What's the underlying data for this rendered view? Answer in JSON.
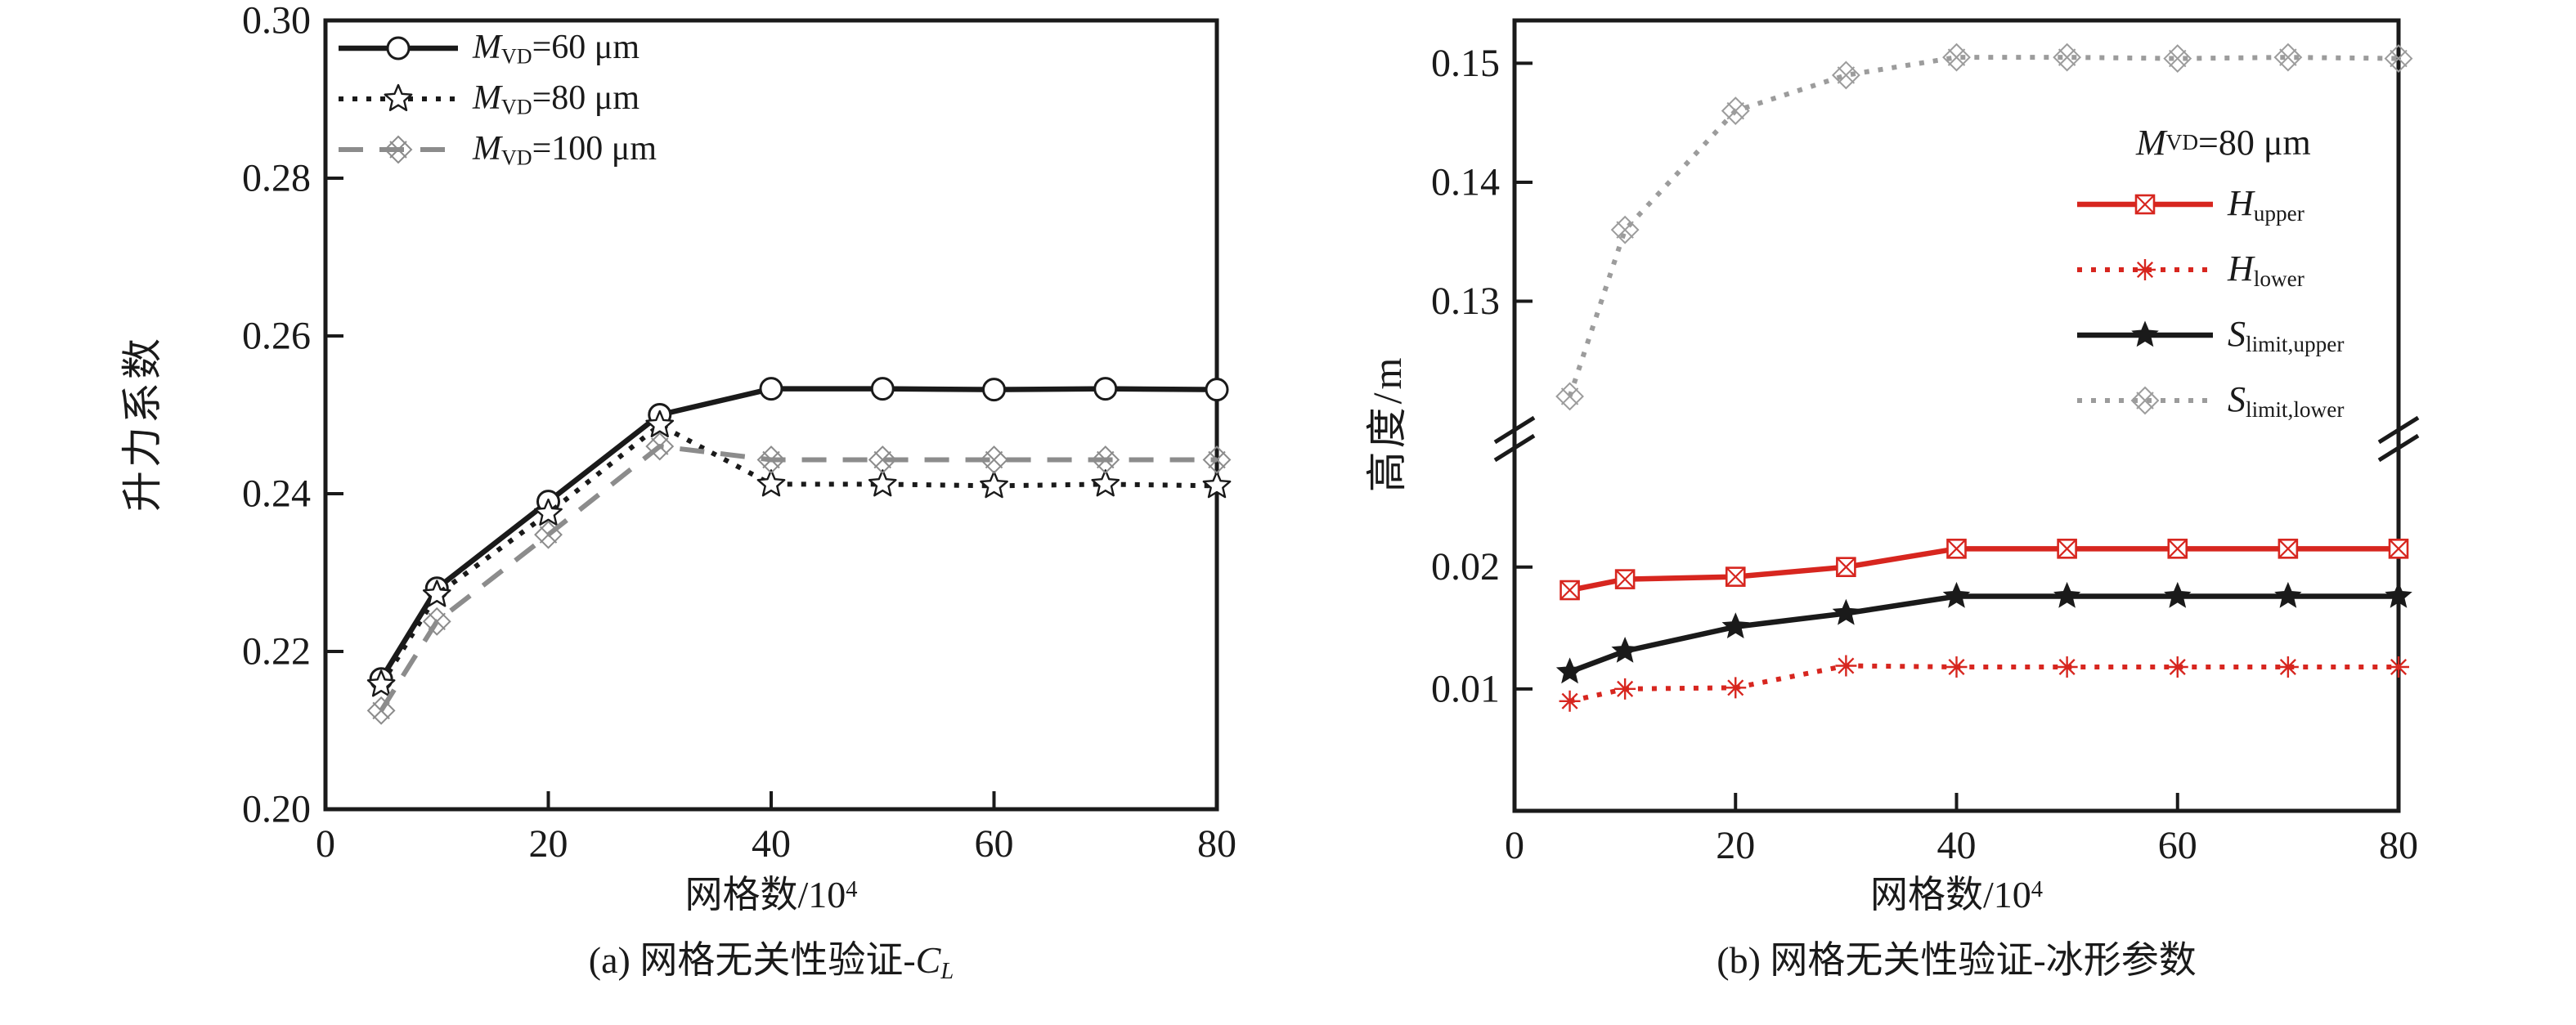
{
  "page": {
    "background": "#ffffff",
    "text_color": "#1a1a1a"
  },
  "chart_data": [
    {
      "id": "a",
      "type": "line",
      "caption": "(a) 网格无关性验证-CL",
      "caption_segments": [
        {
          "t": "(a) 网格无关性验证-"
        },
        {
          "t": "C",
          "i": 1
        },
        {
          "t": "L",
          "i": 1,
          "sub": 1
        }
      ],
      "xlabel": "网格数/10^4",
      "xlabel_segments": [
        {
          "t": "网格数/10"
        },
        {
          "t": "4",
          "sup": 1
        }
      ],
      "ylabel": "升力系数",
      "xlim": [
        0,
        80
      ],
      "xticks": [
        0,
        20,
        40,
        60,
        80
      ],
      "ylim": [
        0.2,
        0.3
      ],
      "yticks": [
        0.2,
        0.22,
        0.24,
        0.26,
        0.28,
        0.3
      ],
      "grid": false,
      "legend_position": "top-left",
      "x": [
        5,
        10,
        20,
        30,
        40,
        50,
        60,
        70,
        80
      ],
      "series": [
        {
          "name": "M_VD=60 μm",
          "name_segments": [
            {
              "t": "M",
              "i": 1
            },
            {
              "t": "VD",
              "sub": 1
            },
            {
              "t": "=60 μm"
            }
          ],
          "color": "#1a1a1a",
          "line": "solid",
          "marker": "circle",
          "values": [
            0.2165,
            0.228,
            0.239,
            0.25,
            0.2533,
            0.2533,
            0.2532,
            0.2533,
            0.2532
          ]
        },
        {
          "name": "M_VD=80 μm",
          "name_segments": [
            {
              "t": "M",
              "i": 1
            },
            {
              "t": "VD",
              "sub": 1
            },
            {
              "t": "=80 μm"
            }
          ],
          "color": "#1a1a1a",
          "line": "dotted",
          "marker": "star-open",
          "values": [
            0.2158,
            0.2272,
            0.2375,
            0.2487,
            0.2412,
            0.2412,
            0.241,
            0.2412,
            0.241
          ]
        },
        {
          "name": "M_VD=100 μm",
          "name_segments": [
            {
              "t": "M",
              "i": 1
            },
            {
              "t": "VD",
              "sub": 1
            },
            {
              "t": "=100 μm"
            }
          ],
          "color": "#8c8c8c",
          "line": "dashed",
          "marker": "x-diamond",
          "values": [
            0.2125,
            0.2238,
            0.2348,
            0.246,
            0.2443,
            0.2443,
            0.2443,
            0.2443,
            0.2443
          ]
        }
      ]
    },
    {
      "id": "b",
      "type": "line",
      "caption": "(b) 网格无关性验证-冰形参数",
      "caption_segments": [
        {
          "t": "(b) 网格无关性验证-冰形参数"
        }
      ],
      "xlabel": "网格数/10^4",
      "xlabel_segments": [
        {
          "t": "网格数/10"
        },
        {
          "t": "4",
          "sup": 1
        }
      ],
      "ylabel": "高度/m",
      "xlim": [
        0,
        80
      ],
      "xticks": [
        0,
        20,
        40,
        60,
        80
      ],
      "axis_break": true,
      "y_segments": {
        "top": {
          "ylim": [
            0.1187,
            0.1536
          ],
          "yticks": [
            0.13,
            0.14,
            0.15
          ]
        },
        "bottom": {
          "ylim": [
            0.0,
            0.0295
          ],
          "yticks": [
            0.01,
            0.02
          ]
        }
      },
      "grid": false,
      "legend_title": "M_VD=80 μm",
      "legend_title_segments": [
        {
          "t": "M",
          "i": 1
        },
        {
          "t": "VD",
          "sub": 1
        },
        {
          "t": "=80 μm"
        }
      ],
      "legend_position": "right-middle",
      "x": [
        5,
        10,
        20,
        30,
        40,
        50,
        60,
        70,
        80
      ],
      "series": [
        {
          "name": "H_upper",
          "name_segments": [
            {
              "t": "H",
              "i": 1
            },
            {
              "t": "upper",
              "sub": 1
            }
          ],
          "segment": "bottom",
          "color": "#d7261f",
          "line": "solid",
          "marker": "x-square",
          "values": [
            0.0181,
            0.019,
            0.0192,
            0.02,
            0.0215,
            0.0215,
            0.0215,
            0.0215,
            0.0215
          ]
        },
        {
          "name": "H_lower",
          "name_segments": [
            {
              "t": "H",
              "i": 1
            },
            {
              "t": "lower",
              "sub": 1
            }
          ],
          "segment": "bottom",
          "color": "#d7261f",
          "line": "dotted",
          "marker": "x-star",
          "values": [
            0.009,
            0.01,
            0.0101,
            0.0119,
            0.0118,
            0.0118,
            0.0118,
            0.0118,
            0.0118
          ]
        },
        {
          "name": "S_limit,upper",
          "name_segments": [
            {
              "t": "S",
              "i": 1
            },
            {
              "t": "limit,upper",
              "sub": 1
            }
          ],
          "segment": "bottom",
          "color": "#1a1a1a",
          "line": "solid",
          "marker": "star-filled",
          "values": [
            0.0114,
            0.0131,
            0.0151,
            0.0162,
            0.0176,
            0.0176,
            0.0176,
            0.0176,
            0.0176
          ]
        },
        {
          "name": "S_limit,lower",
          "name_segments": [
            {
              "t": "S",
              "i": 1
            },
            {
              "t": "limit,lower",
              "sub": 1
            }
          ],
          "segment": "top",
          "color": "#9c9c9c",
          "line": "dotted",
          "marker": "x-diamond",
          "values": [
            0.122,
            0.136,
            0.146,
            0.149,
            0.1505,
            0.1505,
            0.1504,
            0.1505,
            0.1504
          ]
        }
      ]
    }
  ]
}
